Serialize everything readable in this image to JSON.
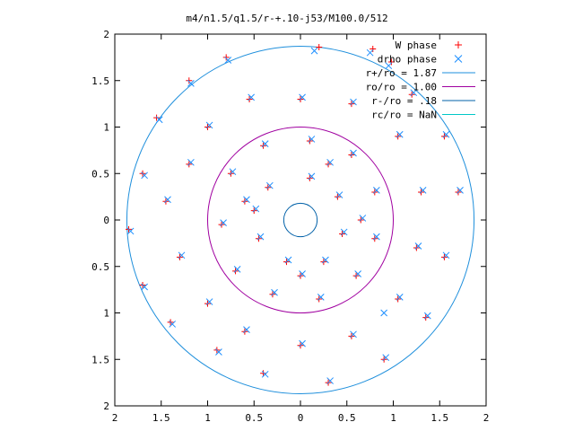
{
  "chart_data": {
    "type": "scatter",
    "title": "m4/n1.5/q1.5/r-+.10-j53/M100.0/512",
    "xlabel": "",
    "ylabel": "",
    "xlim": [
      -2,
      2
    ],
    "ylim": [
      -2,
      2
    ],
    "xticks": [
      {
        "value": -2,
        "label": "2"
      },
      {
        "value": -1.5,
        "label": "1.5"
      },
      {
        "value": -1,
        "label": "1"
      },
      {
        "value": -0.5,
        "label": "0.5"
      },
      {
        "value": 0,
        "label": "0"
      },
      {
        "value": 0.5,
        "label": "0.5"
      },
      {
        "value": 1,
        "label": "1"
      },
      {
        "value": 1.5,
        "label": "1.5"
      },
      {
        "value": 2,
        "label": "2"
      }
    ],
    "yticks": [
      {
        "value": 2,
        "label": "2"
      },
      {
        "value": 1.5,
        "label": "1.5"
      },
      {
        "value": 1,
        "label": "1"
      },
      {
        "value": 0.5,
        "label": "0.5"
      },
      {
        "value": 0,
        "label": "0"
      },
      {
        "value": -0.5,
        "label": "0.5"
      },
      {
        "value": -1,
        "label": "1"
      },
      {
        "value": -1.5,
        "label": "1.5"
      },
      {
        "value": -2,
        "label": "2"
      }
    ],
    "grid": false,
    "legend_position": "top-right",
    "series": [
      {
        "name": "W phase",
        "marker": "plus",
        "color": "#ff0000",
        "points": [
          [
            0.78,
            1.84
          ],
          [
            0.98,
            1.7
          ],
          [
            0.2,
            1.86
          ],
          [
            -0.8,
            1.75
          ],
          [
            -1.2,
            1.5
          ],
          [
            -1.55,
            1.1
          ],
          [
            -1.7,
            0.5
          ],
          [
            -1.85,
            -0.1
          ],
          [
            -1.7,
            -0.7
          ],
          [
            -1.4,
            -1.1
          ],
          [
            -0.9,
            -1.4
          ],
          [
            -0.4,
            -1.65
          ],
          [
            0.3,
            -1.75
          ],
          [
            0.9,
            -1.5
          ],
          [
            1.35,
            -1.05
          ],
          [
            1.55,
            -0.4
          ],
          [
            1.7,
            0.3
          ],
          [
            1.55,
            0.9
          ],
          [
            1.2,
            1.35
          ],
          [
            -1.45,
            0.2
          ],
          [
            -1.2,
            0.6
          ],
          [
            -1.0,
            1.0
          ],
          [
            -0.55,
            1.3
          ],
          [
            0.0,
            1.3
          ],
          [
            0.55,
            1.25
          ],
          [
            1.05,
            0.9
          ],
          [
            1.3,
            0.3
          ],
          [
            1.25,
            -0.3
          ],
          [
            1.05,
            -0.85
          ],
          [
            0.55,
            -1.25
          ],
          [
            0.0,
            -1.35
          ],
          [
            -0.6,
            -1.2
          ],
          [
            -1.0,
            -0.9
          ],
          [
            -1.3,
            -0.4
          ],
          [
            -0.75,
            0.5
          ],
          [
            -0.4,
            0.8
          ],
          [
            0.1,
            0.85
          ],
          [
            0.55,
            0.7
          ],
          [
            0.8,
            0.3
          ],
          [
            0.8,
            -0.2
          ],
          [
            0.6,
            -0.6
          ],
          [
            0.2,
            -0.85
          ],
          [
            -0.3,
            -0.8
          ],
          [
            -0.7,
            -0.55
          ],
          [
            -0.85,
            -0.05
          ],
          [
            -0.35,
            0.35
          ],
          [
            0.1,
            0.45
          ],
          [
            0.4,
            0.25
          ],
          [
            0.45,
            -0.15
          ],
          [
            0.25,
            -0.45
          ],
          [
            -0.15,
            -0.45
          ],
          [
            -0.45,
            -0.2
          ],
          [
            -0.5,
            0.1
          ],
          [
            0.3,
            0.6
          ],
          [
            -0.6,
            0.2
          ],
          [
            0.0,
            -0.6
          ],
          [
            0.65,
            0.0
          ]
        ]
      },
      {
        "name": "drho phase",
        "marker": "cross",
        "color": "#1e8fff",
        "points": [
          [
            0.75,
            1.8
          ],
          [
            0.95,
            1.66
          ],
          [
            0.15,
            1.82
          ],
          [
            -0.78,
            1.72
          ],
          [
            -1.18,
            1.47
          ],
          [
            -1.52,
            1.08
          ],
          [
            -1.68,
            0.48
          ],
          [
            -1.83,
            -0.12
          ],
          [
            -1.68,
            -0.72
          ],
          [
            -1.38,
            -1.12
          ],
          [
            -0.88,
            -1.42
          ],
          [
            -0.38,
            -1.66
          ],
          [
            0.32,
            -1.73
          ],
          [
            0.92,
            -1.48
          ],
          [
            1.37,
            -1.03
          ],
          [
            1.57,
            -0.38
          ],
          [
            1.72,
            0.32
          ],
          [
            1.57,
            0.92
          ],
          [
            1.22,
            1.37
          ],
          [
            -1.43,
            0.22
          ],
          [
            -1.18,
            0.62
          ],
          [
            -0.98,
            1.02
          ],
          [
            -0.53,
            1.32
          ],
          [
            0.02,
            1.32
          ],
          [
            0.57,
            1.27
          ],
          [
            1.07,
            0.92
          ],
          [
            1.32,
            0.32
          ],
          [
            1.27,
            -0.28
          ],
          [
            1.07,
            -0.83
          ],
          [
            0.57,
            -1.23
          ],
          [
            0.02,
            -1.33
          ],
          [
            -0.58,
            -1.18
          ],
          [
            -0.98,
            -0.88
          ],
          [
            -1.28,
            -0.38
          ],
          [
            -0.73,
            0.52
          ],
          [
            -0.38,
            0.82
          ],
          [
            0.12,
            0.87
          ],
          [
            0.57,
            0.72
          ],
          [
            0.82,
            0.32
          ],
          [
            0.82,
            -0.18
          ],
          [
            0.62,
            -0.58
          ],
          [
            0.22,
            -0.83
          ],
          [
            -0.28,
            -0.78
          ],
          [
            -0.68,
            -0.53
          ],
          [
            -0.83,
            -0.03
          ],
          [
            -0.33,
            0.37
          ],
          [
            0.12,
            0.47
          ],
          [
            0.42,
            0.27
          ],
          [
            0.47,
            -0.13
          ],
          [
            0.27,
            -0.43
          ],
          [
            -0.13,
            -0.43
          ],
          [
            -0.43,
            -0.18
          ],
          [
            -0.48,
            0.12
          ],
          [
            0.32,
            0.62
          ],
          [
            -0.58,
            0.22
          ],
          [
            0.02,
            -0.58
          ],
          [
            0.67,
            0.02
          ],
          [
            0.9,
            -1.0
          ]
        ]
      },
      {
        "name": "r+/ro = 1.87",
        "marker": "circle-curve",
        "color": "#1e8fdc",
        "radius": 1.87
      },
      {
        "name": "ro/ro = 1.00",
        "marker": "circle-curve",
        "color": "#a000a0",
        "radius": 1.0
      },
      {
        "name": "r-/ro = .18",
        "marker": "circle-curve",
        "color": "#0060a8",
        "radius": 0.18
      },
      {
        "name": "rc/ro = NaN",
        "marker": "circle-curve",
        "color": "#00c8c8",
        "radius": null
      }
    ]
  }
}
